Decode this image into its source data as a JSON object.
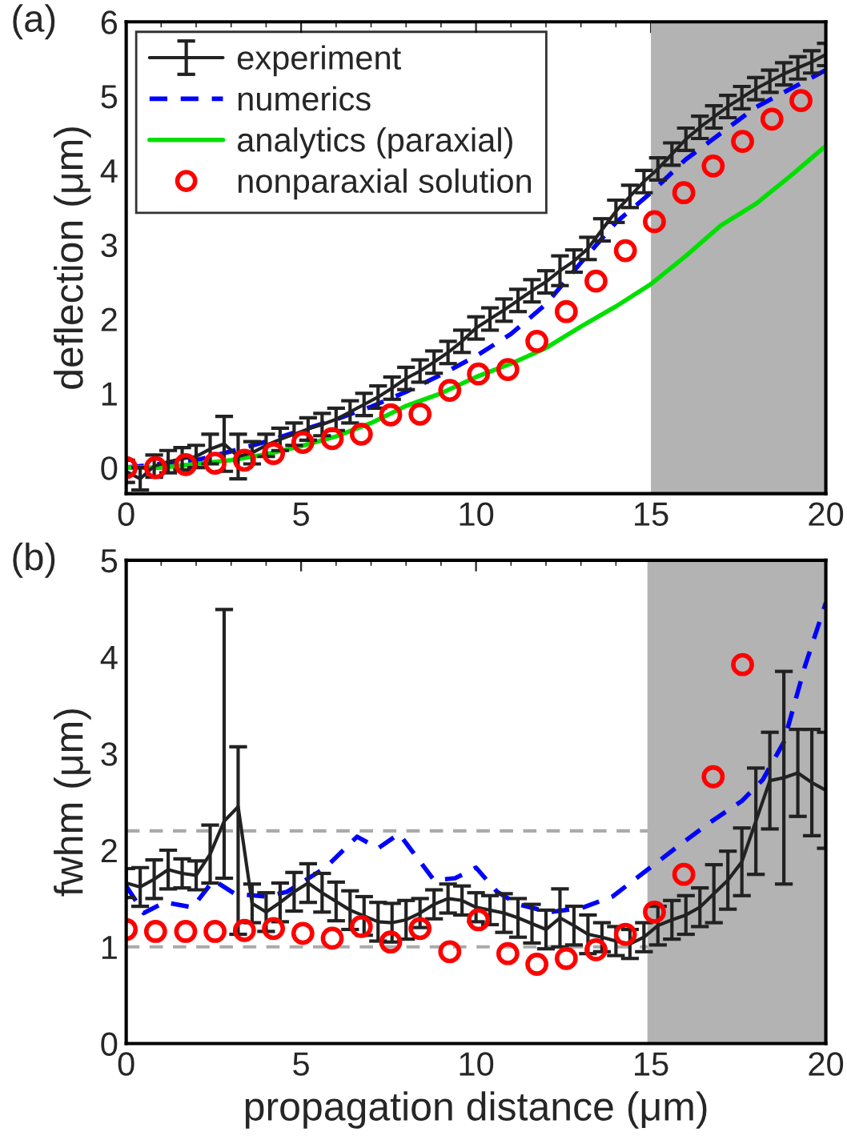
{
  "chart_data": [
    {
      "type": "line",
      "ylabel": "deflection (μm)",
      "xlim": [
        0,
        20
      ],
      "ylim": [
        -0.35,
        6
      ],
      "xticks": [
        0,
        5,
        10,
        15,
        20
      ],
      "yticks": [
        0,
        1,
        2,
        3,
        4,
        5,
        6
      ],
      "grid": false,
      "legend": "top left",
      "annotations": [
        "(a)"
      ],
      "bands": [
        {
          "axis": "x",
          "from": 15,
          "to": 20,
          "color": "#b3b3b3"
        }
      ],
      "series": [
        {
          "name": "experiment",
          "color": "#222222",
          "line_style": "solid",
          "marker": "none",
          "x": [
            0,
            0.4,
            0.8,
            1.2,
            1.6,
            2.0,
            2.4,
            2.8,
            3.2,
            3.6,
            4.0,
            4.4,
            4.8,
            5.2,
            5.6,
            6.0,
            6.4,
            6.8,
            7.2,
            7.6,
            8.0,
            8.4,
            8.8,
            9.2,
            9.6,
            10.0,
            10.4,
            10.8,
            11.2,
            11.6,
            12.0,
            12.4,
            12.8,
            13.2,
            13.6,
            14.0,
            14.4,
            14.8,
            15.2,
            15.6,
            16.0,
            16.4,
            16.8,
            17.2,
            17.6,
            18.0,
            18.4,
            18.8,
            19.2,
            19.6,
            20.0
          ],
          "values": [
            -0.05,
            -0.15,
            0.02,
            0.08,
            0.12,
            0.15,
            0.25,
            0.32,
            0.15,
            0.2,
            0.3,
            0.38,
            0.45,
            0.52,
            0.58,
            0.65,
            0.75,
            0.85,
            0.95,
            1.07,
            1.2,
            1.3,
            1.42,
            1.55,
            1.7,
            1.88,
            2.0,
            2.12,
            2.25,
            2.38,
            2.5,
            2.65,
            2.78,
            2.95,
            3.2,
            3.45,
            3.65,
            3.85,
            4.02,
            4.22,
            4.42,
            4.58,
            4.72,
            4.86,
            4.98,
            5.1,
            5.2,
            5.3,
            5.38,
            5.46,
            5.56
          ],
          "errors": [
            0.15,
            0.15,
            0.15,
            0.15,
            0.15,
            0.15,
            0.2,
            0.37,
            0.3,
            0.15,
            0.15,
            0.15,
            0.15,
            0.15,
            0.15,
            0.15,
            0.15,
            0.15,
            0.15,
            0.15,
            0.15,
            0.15,
            0.15,
            0.15,
            0.15,
            0.15,
            0.15,
            0.15,
            0.15,
            0.15,
            0.15,
            0.2,
            0.15,
            0.15,
            0.15,
            0.15,
            0.15,
            0.15,
            0.15,
            0.15,
            0.15,
            0.15,
            0.15,
            0.15,
            0.15,
            0.15,
            0.15,
            0.15,
            0.15,
            0.15,
            0.15
          ]
        },
        {
          "name": "numerics",
          "color": "#0000ff",
          "line_style": "dashed",
          "marker": "none",
          "x": [
            0,
            1,
            2,
            3,
            4,
            5,
            6,
            7,
            8,
            9,
            10,
            11,
            12,
            13,
            14,
            15,
            16,
            17,
            18,
            19,
            20
          ],
          "values": [
            0.0,
            0.05,
            0.1,
            0.22,
            0.35,
            0.5,
            0.65,
            0.82,
            1.02,
            1.25,
            1.5,
            1.8,
            2.2,
            2.76,
            3.3,
            3.7,
            4.15,
            4.5,
            4.85,
            5.1,
            5.35
          ]
        },
        {
          "name": "analytics (paraxial)",
          "color": "#00e000",
          "line_style": "solid",
          "marker": "none",
          "x": [
            0,
            1,
            2,
            3,
            4,
            5,
            6,
            7,
            8,
            9,
            10,
            11,
            12,
            13,
            14,
            15,
            16,
            17,
            18,
            19,
            20
          ],
          "values": [
            0.0,
            0.0,
            0.05,
            0.1,
            0.18,
            0.29,
            0.42,
            0.6,
            0.83,
            1.0,
            1.22,
            1.4,
            1.61,
            1.9,
            2.17,
            2.47,
            2.85,
            3.26,
            3.55,
            3.93,
            4.33
          ]
        },
        {
          "name": "nonparaxial solution",
          "type": "scatter",
          "color": "#ff0000",
          "marker": "circle",
          "x": [
            0,
            0.84,
            1.7,
            2.54,
            3.38,
            4.21,
            5.05,
            5.89,
            6.72,
            7.56,
            8.4,
            9.25,
            10.07,
            10.91,
            11.74,
            12.58,
            13.43,
            14.27,
            15.1,
            15.94,
            16.78,
            17.62,
            18.46,
            19.29
          ],
          "values": [
            0,
            0,
            0.04,
            0.06,
            0.1,
            0.19,
            0.34,
            0.39,
            0.45,
            0.71,
            0.72,
            1.04,
            1.26,
            1.32,
            1.7,
            2.1,
            2.51,
            2.92,
            3.31,
            3.7,
            4.06,
            4.39,
            4.69,
            4.94
          ]
        }
      ]
    },
    {
      "type": "line",
      "xlabel": "propagation distance (μm)",
      "ylabel": "fwhm (μm)",
      "xlim": [
        0,
        20
      ],
      "ylim": [
        0,
        5
      ],
      "xticks": [
        0,
        5,
        10,
        15,
        20
      ],
      "yticks": [
        0,
        1,
        2,
        3,
        4,
        5
      ],
      "grid": false,
      "annotations": [
        "(b)"
      ],
      "bands": [
        {
          "axis": "x",
          "from": 14.9,
          "to": 20,
          "color": "#b3b3b3"
        }
      ],
      "ref_lines": [
        {
          "axis": "y",
          "value": 2.2,
          "color": "#aaaaaa",
          "line_style": "dashed"
        },
        {
          "axis": "y",
          "value": 1.0,
          "color": "#aaaaaa",
          "line_style": "dashed"
        }
      ],
      "series": [
        {
          "color": "#222222",
          "line_style": "solid",
          "marker": "none",
          "x": [
            0,
            0.4,
            0.8,
            1.2,
            1.6,
            2.0,
            2.4,
            2.8,
            3.2,
            3.6,
            4.0,
            4.4,
            4.8,
            5.2,
            5.6,
            6.0,
            6.4,
            6.8,
            7.2,
            7.6,
            8.0,
            8.4,
            8.8,
            9.2,
            9.6,
            10.0,
            10.4,
            10.8,
            11.2,
            11.6,
            12.0,
            12.4,
            12.8,
            13.2,
            13.6,
            14.0,
            14.4,
            14.8,
            15.2,
            15.6,
            16.0,
            16.4,
            16.8,
            17.2,
            17.6,
            18.0,
            18.4,
            18.8,
            19.2,
            19.6,
            20.0
          ],
          "values": [
            1.66,
            1.62,
            1.7,
            1.8,
            1.76,
            1.74,
            1.96,
            2.3,
            2.45,
            1.45,
            1.36,
            1.46,
            1.57,
            1.66,
            1.56,
            1.47,
            1.38,
            1.32,
            1.26,
            1.25,
            1.28,
            1.35,
            1.44,
            1.5,
            1.48,
            1.41,
            1.38,
            1.35,
            1.3,
            1.24,
            1.18,
            1.3,
            1.22,
            1.13,
            1.1,
            1.06,
            1.03,
            1.1,
            1.22,
            1.28,
            1.33,
            1.41,
            1.55,
            1.69,
            1.88,
            2.3,
            2.72,
            2.75,
            2.8,
            2.7,
            2.62
          ],
          "errors": [
            0.15,
            0.2,
            0.2,
            0.2,
            0.15,
            0.15,
            0.3,
            [
              1.71,
              4.49
            ],
            [
              1.13,
              3.07
            ],
            0.2,
            0.2,
            0.2,
            0.2,
            0.2,
            0.2,
            0.2,
            0.2,
            0.2,
            0.2,
            0.2,
            0.2,
            0.15,
            0.15,
            0.15,
            0.15,
            0.15,
            0.15,
            0.2,
            0.2,
            0.2,
            0.2,
            0.3,
            0.2,
            0.2,
            0.15,
            0.15,
            0.15,
            0.15,
            0.2,
            0.2,
            0.2,
            0.2,
            0.3,
            0.3,
            0.35,
            0.55,
            0.5,
            1.1,
            0.45,
            0.55,
            0.6
          ]
        },
        {
          "color": "#0000ff",
          "line_style": "dashed",
          "marker": "none",
          "x": [
            0,
            0.5,
            1.1,
            1.9,
            2.5,
            3.1,
            4.0,
            4.6,
            5.7,
            6.6,
            7.2,
            7.8,
            8.8,
            9.4,
            10.0,
            10.6,
            11.2,
            12.1,
            13.0,
            13.9,
            14.8,
            15.7,
            16.7,
            17.6,
            18.2,
            18.8,
            19.4,
            20.0
          ],
          "values": [
            1.63,
            1.35,
            1.46,
            1.41,
            1.69,
            1.55,
            1.52,
            1.57,
            1.82,
            2.14,
            2.02,
            2.17,
            1.69,
            1.71,
            1.82,
            1.57,
            1.44,
            1.36,
            1.4,
            1.52,
            1.77,
            2.02,
            2.29,
            2.51,
            2.73,
            3.12,
            3.9,
            4.56
          ]
        },
        {
          "type": "scatter",
          "color": "#ff0000",
          "marker": "circle",
          "x": [
            0,
            0.84,
            1.7,
            2.54,
            3.38,
            4.21,
            5.05,
            5.89,
            6.72,
            7.56,
            8.4,
            9.25,
            10.07,
            10.91,
            11.74,
            12.58,
            13.43,
            14.27,
            15.1,
            15.94,
            16.78,
            17.62
          ],
          "values": [
            1.18,
            1.16,
            1.16,
            1.16,
            1.17,
            1.19,
            1.14,
            1.09,
            1.21,
            1.05,
            1.19,
            0.95,
            1.28,
            0.93,
            0.82,
            0.88,
            0.97,
            1.13,
            1.36,
            1.75,
            2.76,
            3.92
          ]
        }
      ]
    }
  ]
}
